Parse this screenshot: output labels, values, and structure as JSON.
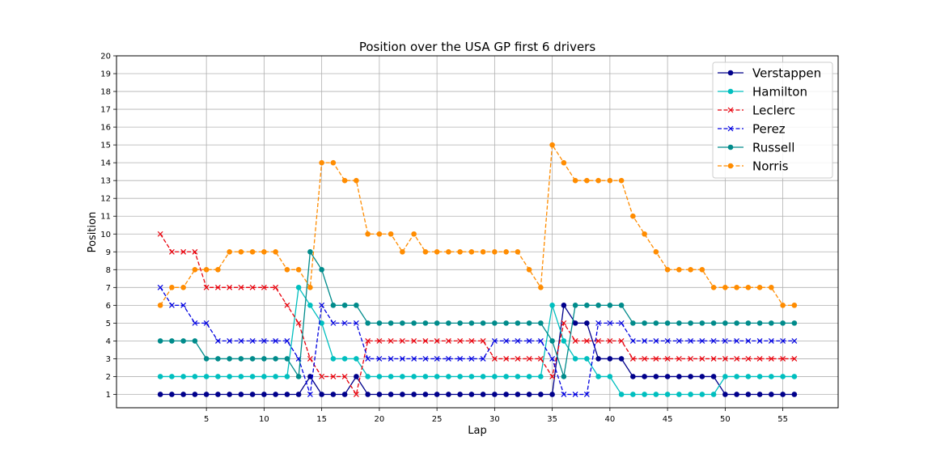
{
  "chart_data": {
    "type": "line",
    "title": "Position over the USA GP first 6 drivers",
    "xlabel": "Lap",
    "ylabel": "Position",
    "xlim": [
      -2.8,
      59.8
    ],
    "ylim": [
      0.25,
      20
    ],
    "xticks": [
      5,
      10,
      15,
      20,
      25,
      30,
      35,
      40,
      45,
      50,
      55
    ],
    "yticks": [
      1,
      2,
      3,
      4,
      5,
      6,
      7,
      8,
      9,
      10,
      11,
      12,
      13,
      14,
      15,
      16,
      17,
      18,
      19,
      20
    ],
    "grid": true,
    "legend_position": "top-right",
    "x": [
      1,
      2,
      3,
      4,
      5,
      6,
      7,
      8,
      9,
      10,
      11,
      12,
      13,
      14,
      15,
      16,
      17,
      18,
      19,
      20,
      21,
      22,
      23,
      24,
      25,
      26,
      27,
      28,
      29,
      30,
      31,
      32,
      33,
      34,
      35,
      36,
      37,
      38,
      39,
      40,
      41,
      42,
      43,
      44,
      45,
      46,
      47,
      48,
      49,
      50,
      51,
      52,
      53,
      54,
      55,
      56
    ],
    "series": [
      {
        "name": "Verstappen",
        "color": "#00008b",
        "linestyle": "solid",
        "marker": "circle",
        "values": [
          1,
          1,
          1,
          1,
          1,
          1,
          1,
          1,
          1,
          1,
          1,
          1,
          1,
          2,
          1,
          1,
          1,
          2,
          1,
          1,
          1,
          1,
          1,
          1,
          1,
          1,
          1,
          1,
          1,
          1,
          1,
          1,
          1,
          1,
          1,
          6,
          5,
          5,
          3,
          3,
          3,
          2,
          2,
          2,
          2,
          2,
          2,
          2,
          2,
          1,
          1,
          1,
          1,
          1,
          1,
          1
        ]
      },
      {
        "name": "Hamilton",
        "color": "#00bfbf",
        "linestyle": "solid",
        "marker": "circle",
        "values": [
          2,
          2,
          2,
          2,
          2,
          2,
          2,
          2,
          2,
          2,
          2,
          2,
          7,
          6,
          5,
          3,
          3,
          3,
          2,
          2,
          2,
          2,
          2,
          2,
          2,
          2,
          2,
          2,
          2,
          2,
          2,
          2,
          2,
          2,
          6,
          4,
          3,
          3,
          2,
          2,
          1,
          1,
          1,
          1,
          1,
          1,
          1,
          1,
          1,
          2,
          2,
          2,
          2,
          2,
          2,
          2
        ]
      },
      {
        "name": "Leclerc",
        "color": "#e8000b",
        "linestyle": "dashed",
        "marker": "x",
        "values": [
          10,
          9,
          9,
          9,
          7,
          7,
          7,
          7,
          7,
          7,
          7,
          6,
          5,
          3,
          2,
          2,
          2,
          1,
          4,
          4,
          4,
          4,
          4,
          4,
          4,
          4,
          4,
          4,
          4,
          3,
          3,
          3,
          3,
          3,
          2,
          5,
          4,
          4,
          4,
          4,
          4,
          3,
          3,
          3,
          3,
          3,
          3,
          3,
          3,
          3,
          3,
          3,
          3,
          3,
          3,
          3
        ]
      },
      {
        "name": "Perez",
        "color": "#0000e0",
        "linestyle": "dashed",
        "marker": "x",
        "values": [
          7,
          6,
          6,
          5,
          5,
          4,
          4,
          4,
          4,
          4,
          4,
          4,
          3,
          1,
          6,
          5,
          5,
          5,
          3,
          3,
          3,
          3,
          3,
          3,
          3,
          3,
          3,
          3,
          3,
          4,
          4,
          4,
          4,
          4,
          3,
          1,
          1,
          1,
          5,
          5,
          5,
          4,
          4,
          4,
          4,
          4,
          4,
          4,
          4,
          4,
          4,
          4,
          4,
          4,
          4,
          4
        ]
      },
      {
        "name": "Russell",
        "color": "#008b8b",
        "linestyle": "solid",
        "marker": "circle",
        "values": [
          4,
          4,
          4,
          4,
          3,
          3,
          3,
          3,
          3,
          3,
          3,
          3,
          2,
          9,
          8,
          6,
          6,
          6,
          5,
          5,
          5,
          5,
          5,
          5,
          5,
          5,
          5,
          5,
          5,
          5,
          5,
          5,
          5,
          5,
          4,
          2,
          6,
          6,
          6,
          6,
          6,
          5,
          5,
          5,
          5,
          5,
          5,
          5,
          5,
          5,
          5,
          5,
          5,
          5,
          5,
          5
        ]
      },
      {
        "name": "Norris",
        "color": "#ff8c00",
        "linestyle": "dashed",
        "marker": "circle",
        "values": [
          6,
          7,
          7,
          8,
          8,
          8,
          9,
          9,
          9,
          9,
          9,
          8,
          8,
          7,
          14,
          14,
          13,
          13,
          10,
          10,
          10,
          9,
          10,
          9,
          9,
          9,
          9,
          9,
          9,
          9,
          9,
          9,
          8,
          7,
          15,
          14,
          13,
          13,
          13,
          13,
          13,
          11,
          10,
          9,
          8,
          8,
          8,
          8,
          7,
          7,
          7,
          7,
          7,
          7,
          6,
          6
        ]
      }
    ]
  }
}
